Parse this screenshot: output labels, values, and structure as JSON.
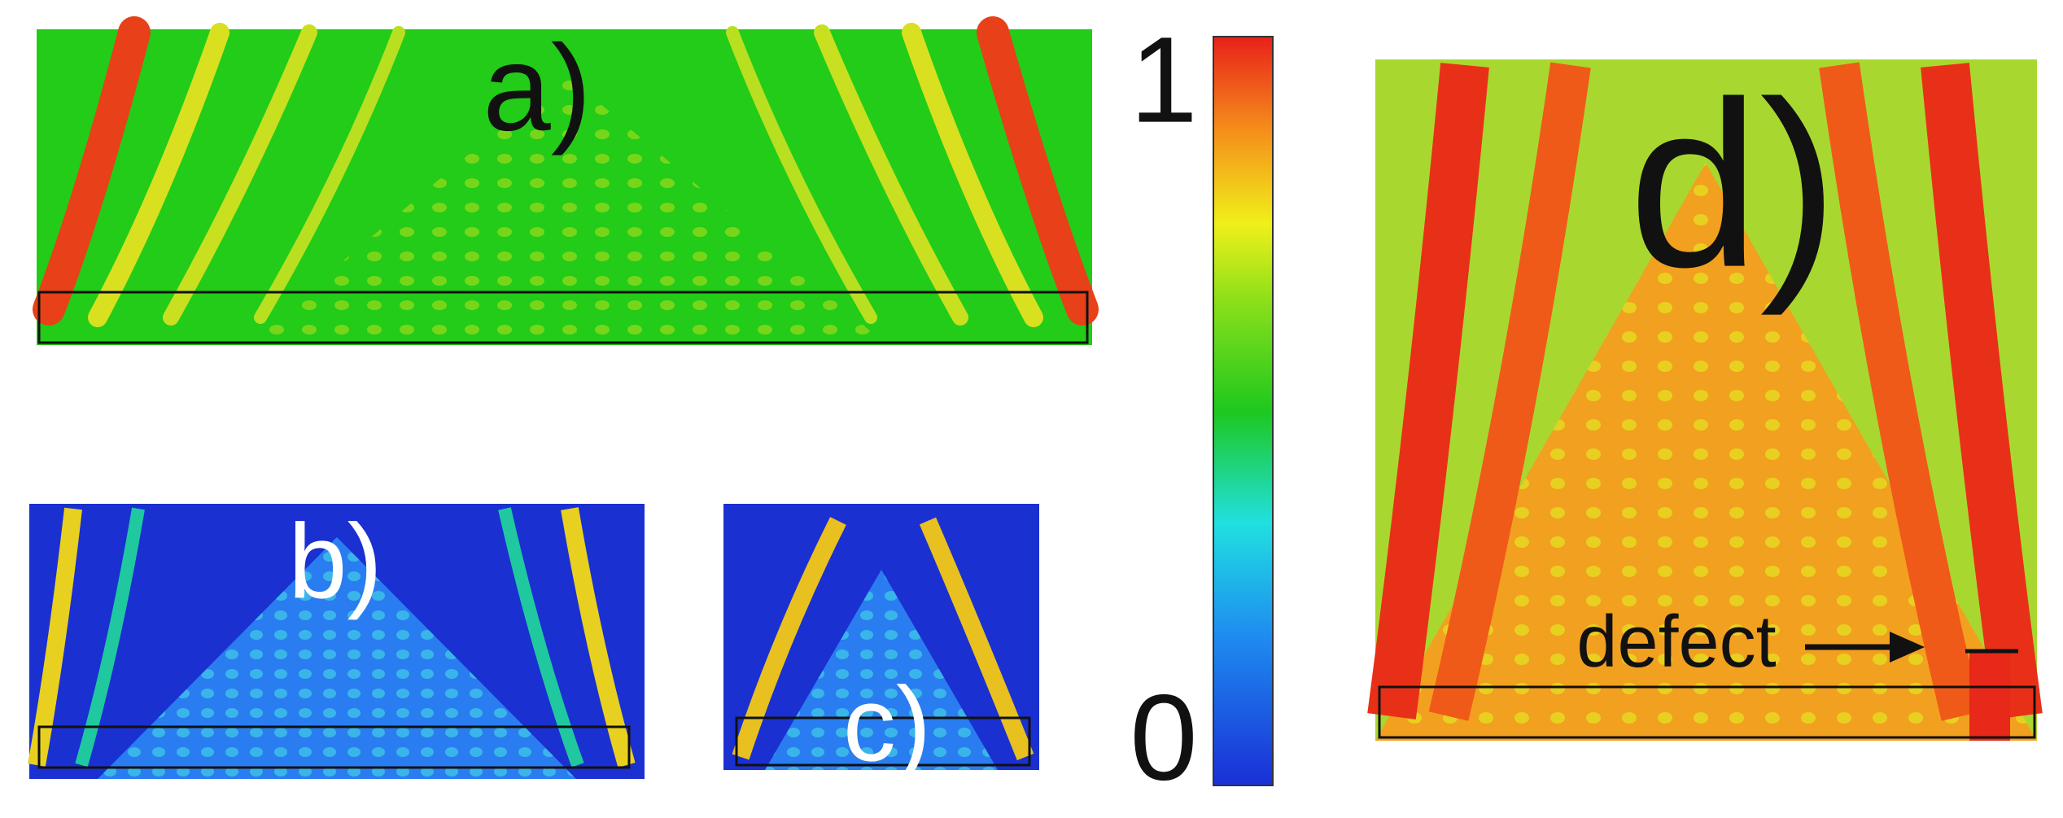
{
  "panels": {
    "a": {
      "label": "a)"
    },
    "b": {
      "label": "b)"
    },
    "c": {
      "label": "c)"
    },
    "d": {
      "label": "d)",
      "annotation": "defect"
    }
  },
  "colorbar": {
    "max_label": "1",
    "min_label": "0"
  }
}
